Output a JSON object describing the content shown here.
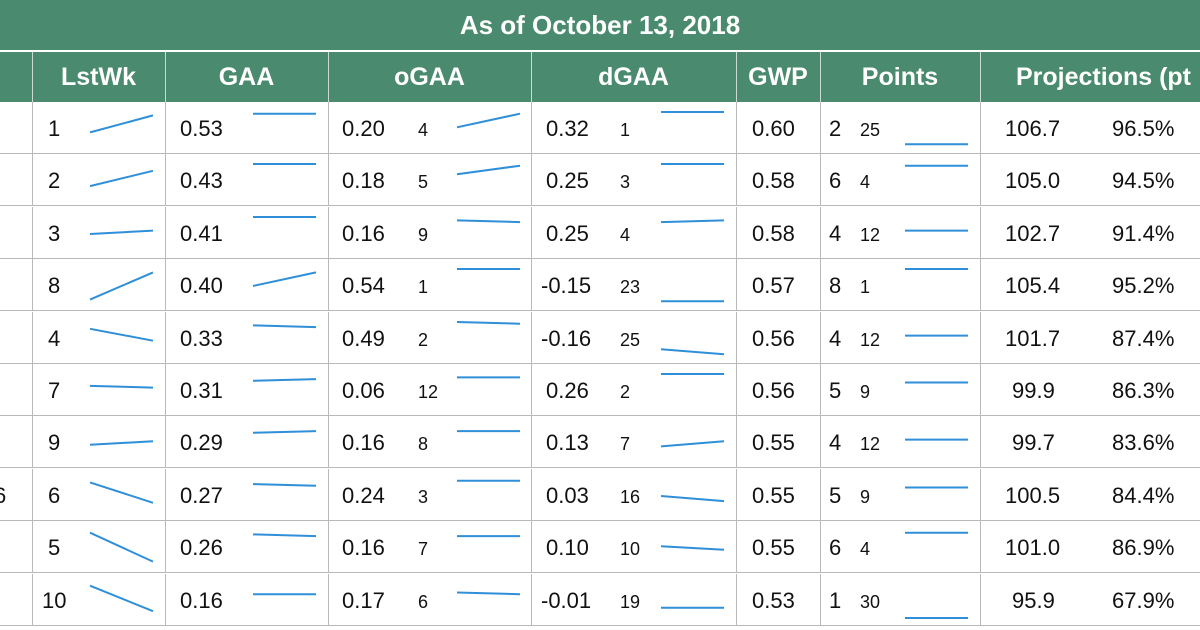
{
  "title": "As of October 13, 2018",
  "colors": {
    "header_bg": "#4a8a6e",
    "header_text": "#ffffff",
    "sparkline": "#2f8fd8",
    "grid": "#b9b9b9"
  },
  "columns": [
    "LstWk",
    "GAA",
    "oGAA",
    "dGAA",
    "GWP",
    "Points",
    "Projections (pt"
  ],
  "rows": [
    {
      "edge": "",
      "lstwk": "1",
      "gaa": "0.53",
      "ogaa": "0.20",
      "ogaa_rank": "4",
      "dgaa": "0.32",
      "dgaa_rank": "1",
      "gwp": "0.60",
      "points": "2",
      "points_rank": "25",
      "proj_pts": "106.7",
      "proj_pct": "96.5%",
      "trends": {
        "lstwk": [
          0.4,
          0.9
        ],
        "gaa": [
          0.95,
          0.95
        ],
        "ogaa": [
          0.55,
          0.95
        ],
        "dgaa": [
          1.0,
          1.0
        ],
        "points": [
          0.05,
          0.05
        ]
      }
    },
    {
      "edge": "",
      "lstwk": "2",
      "gaa": "0.43",
      "ogaa": "0.18",
      "ogaa_rank": "5",
      "dgaa": "0.25",
      "dgaa_rank": "3",
      "gwp": "0.58",
      "points": "6",
      "points_rank": "4",
      "proj_pts": "105.0",
      "proj_pct": "94.5%",
      "trends": {
        "lstwk": [
          0.35,
          0.8
        ],
        "gaa": [
          1.0,
          1.0
        ],
        "ogaa": [
          0.7,
          0.95
        ],
        "dgaa": [
          1.0,
          1.0
        ],
        "points": [
          0.95,
          0.95
        ]
      }
    },
    {
      "edge": "",
      "lstwk": "3",
      "gaa": "0.41",
      "ogaa": "0.16",
      "ogaa_rank": "9",
      "dgaa": "0.25",
      "dgaa_rank": "4",
      "gwp": "0.58",
      "points": "4",
      "points_rank": "12",
      "proj_pts": "102.7",
      "proj_pct": "91.4%",
      "trends": {
        "lstwk": [
          0.5,
          0.6
        ],
        "gaa": [
          1.0,
          1.0
        ],
        "ogaa": [
          0.9,
          0.85
        ],
        "dgaa": [
          0.85,
          0.9
        ],
        "points": [
          0.6,
          0.6
        ]
      }
    },
    {
      "edge": "",
      "lstwk": "8",
      "gaa": "0.40",
      "ogaa": "0.54",
      "ogaa_rank": "1",
      "dgaa": "-0.15",
      "dgaa_rank": "23",
      "gwp": "0.57",
      "points": "8",
      "points_rank": "1",
      "proj_pts": "105.4",
      "proj_pct": "95.2%",
      "trends": {
        "lstwk": [
          0.1,
          0.9
        ],
        "gaa": [
          0.5,
          0.9
        ],
        "ogaa": [
          1.0,
          1.0
        ],
        "dgaa": [
          0.05,
          0.05
        ],
        "points": [
          1.0,
          1.0
        ]
      }
    },
    {
      "edge": "",
      "lstwk": "4",
      "gaa": "0.33",
      "ogaa": "0.49",
      "ogaa_rank": "2",
      "dgaa": "-0.16",
      "dgaa_rank": "25",
      "gwp": "0.56",
      "points": "4",
      "points_rank": "12",
      "proj_pts": "101.7",
      "proj_pct": "87.4%",
      "trends": {
        "lstwk": [
          0.8,
          0.45
        ],
        "gaa": [
          0.9,
          0.85
        ],
        "ogaa": [
          1.0,
          0.95
        ],
        "dgaa": [
          0.2,
          0.05
        ],
        "points": [
          0.6,
          0.6
        ]
      }
    },
    {
      "edge": "",
      "lstwk": "7",
      "gaa": "0.31",
      "ogaa": "0.06",
      "ogaa_rank": "12",
      "dgaa": "0.26",
      "dgaa_rank": "2",
      "gwp": "0.56",
      "points": "5",
      "points_rank": "9",
      "proj_pts": "99.9",
      "proj_pct": "86.3%",
      "trends": {
        "lstwk": [
          0.65,
          0.6
        ],
        "gaa": [
          0.8,
          0.85
        ],
        "ogaa": [
          0.9,
          0.9
        ],
        "dgaa": [
          1.0,
          1.0
        ],
        "points": [
          0.75,
          0.75
        ]
      }
    },
    {
      "edge": "",
      "lstwk": "9",
      "gaa": "0.29",
      "ogaa": "0.16",
      "ogaa_rank": "8",
      "dgaa": "0.13",
      "dgaa_rank": "7",
      "gwp": "0.55",
      "points": "4",
      "points_rank": "12",
      "proj_pts": "99.7",
      "proj_pct": "83.6%",
      "trends": {
        "lstwk": [
          0.45,
          0.55
        ],
        "gaa": [
          0.8,
          0.85
        ],
        "ogaa": [
          0.85,
          0.85
        ],
        "dgaa": [
          0.4,
          0.55
        ],
        "points": [
          0.6,
          0.6
        ]
      }
    },
    {
      "edge": "6",
      "lstwk": "6",
      "gaa": "0.27",
      "ogaa": "0.24",
      "ogaa_rank": "3",
      "dgaa": "0.03",
      "dgaa_rank": "16",
      "gwp": "0.55",
      "points": "5",
      "points_rank": "9",
      "proj_pts": "100.5",
      "proj_pct": "84.4%",
      "trends": {
        "lstwk": [
          0.9,
          0.3
        ],
        "gaa": [
          0.85,
          0.8
        ],
        "ogaa": [
          0.95,
          0.95
        ],
        "dgaa": [
          0.5,
          0.35
        ],
        "points": [
          0.75,
          0.75
        ]
      }
    },
    {
      "edge": "",
      "lstwk": "5",
      "gaa": "0.26",
      "ogaa": "0.16",
      "ogaa_rank": "7",
      "dgaa": "0.10",
      "dgaa_rank": "10",
      "gwp": "0.55",
      "points": "6",
      "points_rank": "4",
      "proj_pts": "101.0",
      "proj_pct": "86.9%",
      "trends": {
        "lstwk": [
          0.95,
          0.1
        ],
        "gaa": [
          0.9,
          0.85
        ],
        "ogaa": [
          0.85,
          0.85
        ],
        "dgaa": [
          0.55,
          0.45
        ],
        "points": [
          0.95,
          0.95
        ]
      }
    },
    {
      "edge": "",
      "lstwk": "10",
      "gaa": "0.16",
      "ogaa": "0.17",
      "ogaa_rank": "6",
      "dgaa": "-0.01",
      "dgaa_rank": "19",
      "gwp": "0.53",
      "points": "1",
      "points_rank": "30",
      "proj_pts": "95.9",
      "proj_pct": "67.9%",
      "trends": {
        "lstwk": [
          0.95,
          0.2
        ],
        "gaa": [
          0.7,
          0.7
        ],
        "ogaa": [
          0.75,
          0.7
        ],
        "dgaa": [
          0.3,
          0.3
        ],
        "points": [
          0.0,
          0.0
        ]
      }
    }
  ]
}
